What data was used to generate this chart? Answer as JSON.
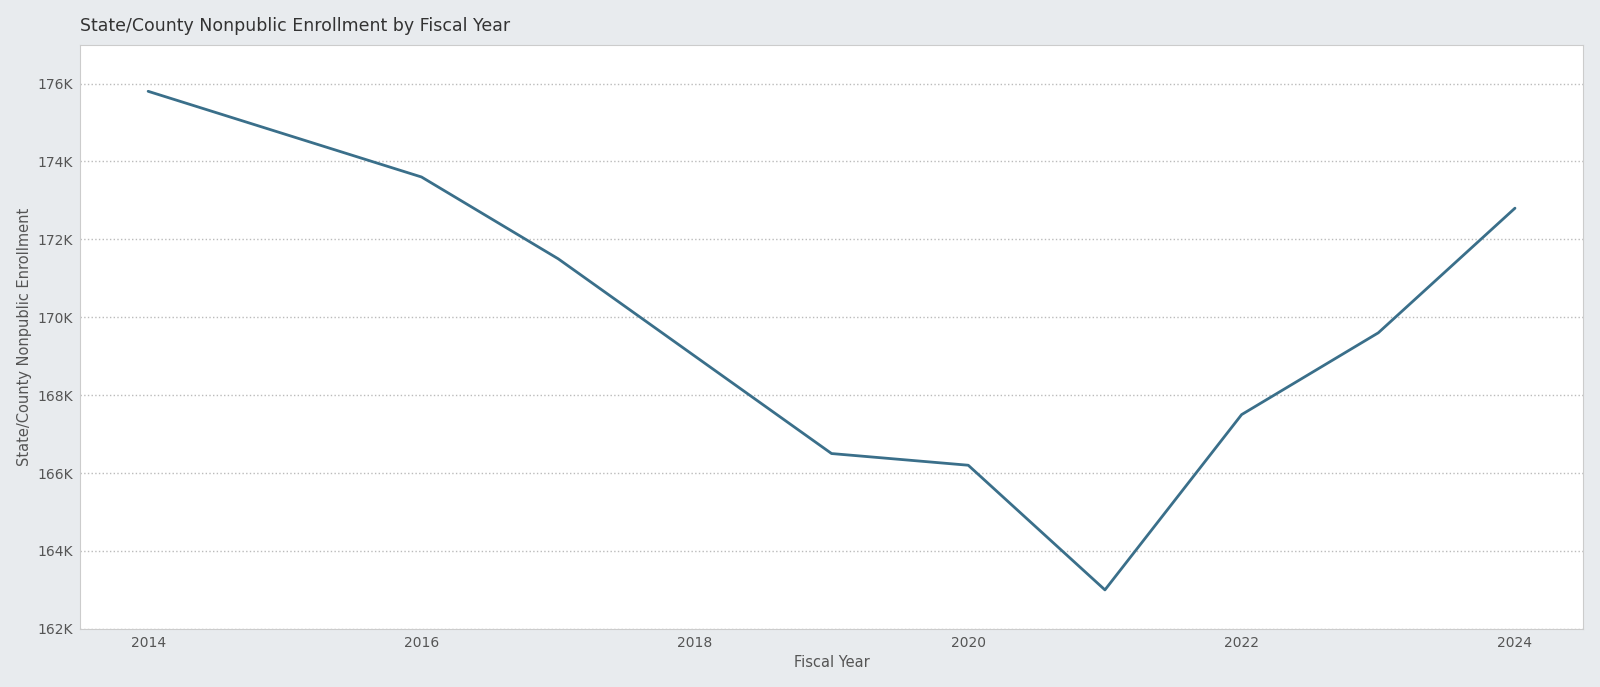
{
  "title": "State/County Nonpublic Enrollment by Fiscal Year",
  "xlabel": "Fiscal Year",
  "ylabel": "State/County Nonpublic Enrollment",
  "x": [
    2014,
    2015,
    2016,
    2017,
    2018,
    2019,
    2020,
    2021,
    2022,
    2023,
    2024
  ],
  "y": [
    175800,
    174700,
    173600,
    171500,
    169000,
    166500,
    166200,
    163000,
    167500,
    169600,
    172800
  ],
  "line_color": "#3a6f8a",
  "background_color": "#e8ebee",
  "plot_bg_color": "#ffffff",
  "grid_color": "#bbbbbb",
  "title_color": "#333333",
  "axis_label_color": "#555555",
  "tick_color": "#555555",
  "border_color": "#cccccc",
  "ylim": [
    162000,
    177000
  ],
  "yticks": [
    162000,
    164000,
    166000,
    168000,
    170000,
    172000,
    174000,
    176000
  ],
  "xticks": [
    2014,
    2016,
    2018,
    2020,
    2022,
    2024
  ],
  "line_width": 2.0,
  "title_fontsize": 12.5,
  "label_fontsize": 10.5,
  "tick_fontsize": 10
}
